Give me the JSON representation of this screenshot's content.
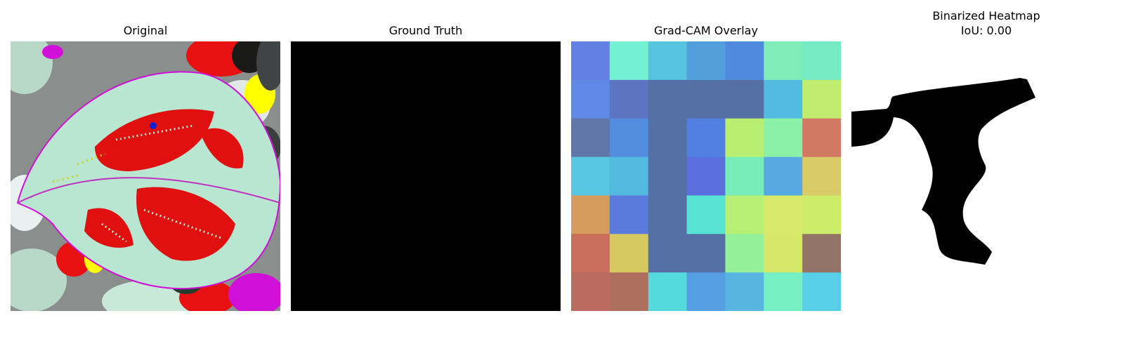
{
  "panels": [
    {
      "title": "Original"
    },
    {
      "title": "Ground Truth"
    },
    {
      "title": "Grad-CAM Overlay"
    },
    {
      "title": "Binarized Heatmap",
      "subtitle": "IoU: 0.00"
    }
  ],
  "colors": {
    "background": "#ffffff",
    "mask": "#000000"
  },
  "gradcam": {
    "rows": 7,
    "cols": 7,
    "cells": [
      [
        "#6380e6",
        "#74f0d2",
        "#57c4e0",
        "#529fdc",
        "#4f8ade",
        "#7eedb8",
        "#75ebc4"
      ],
      [
        "#6088e4",
        "#5d74c2",
        "#5570a5",
        "#5570a5",
        "#5570a5",
        "#53bbe2",
        "#c0ed6e"
      ],
      [
        "#6176a9",
        "#538ddf",
        "#5570a5",
        "#527fe2",
        "#b8ee71",
        "#8af1a8",
        "#d27964"
      ],
      [
        "#57c7e2",
        "#53b9de",
        "#5570a5",
        "#5b6fde",
        "#78edba",
        "#56a9e2",
        "#d9cb68"
      ],
      [
        "#d59a5e",
        "#5a7bdc",
        "#5570a5",
        "#58e4d5",
        "#b8f076",
        "#d8e86a",
        "#cdec6a"
      ],
      [
        "#c96d5c",
        "#d7c962",
        "#5570a5",
        "#5570a5",
        "#95f09b",
        "#d6e86a",
        "#937367"
      ],
      [
        "#bb6b60",
        "#af6f5e",
        "#55d9dc",
        "#539fe2",
        "#58b5e2",
        "#77efc4",
        "#58cfe6"
      ]
    ]
  }
}
